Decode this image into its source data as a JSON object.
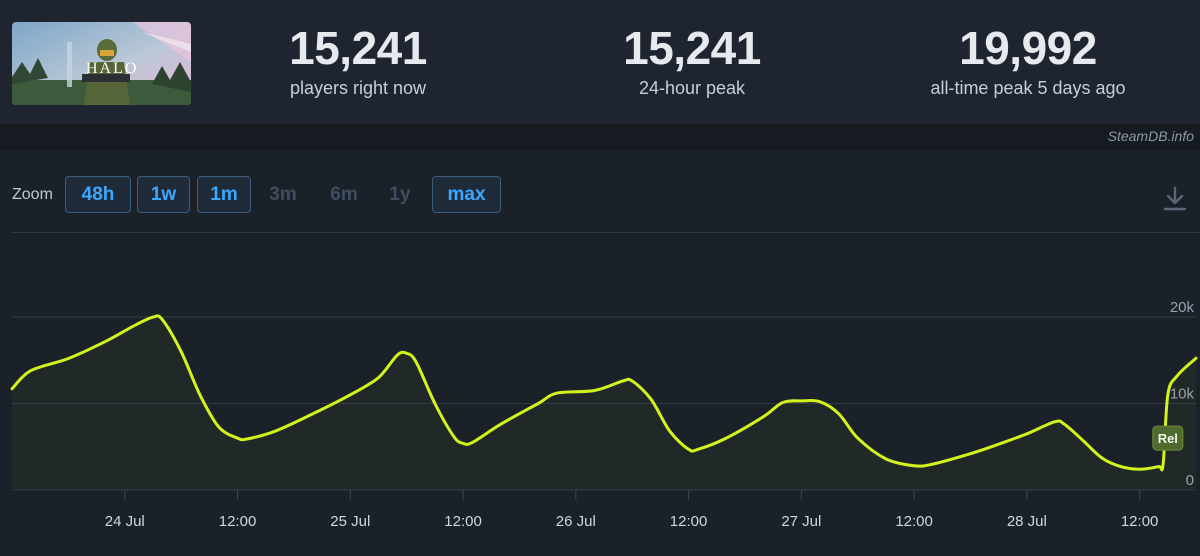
{
  "header": {
    "game_art_icon": "halo-game-capsule",
    "stats": [
      {
        "value": "15,241",
        "label": "players right now"
      },
      {
        "value": "15,241",
        "label": "24-hour peak"
      },
      {
        "value": "19,992",
        "label": "all-time peak 5 days ago"
      }
    ]
  },
  "credit": "SteamDB.info",
  "toolbar": {
    "zoom_label": "Zoom",
    "zoom_options": [
      {
        "label": "48h",
        "enabled": true
      },
      {
        "label": "1w",
        "enabled": true
      },
      {
        "label": "1m",
        "enabled": true
      },
      {
        "label": "3m",
        "enabled": false
      },
      {
        "label": "6m",
        "enabled": false
      },
      {
        "label": "1y",
        "enabled": false
      },
      {
        "label": "max",
        "enabled": true
      }
    ],
    "download_icon": "download-icon"
  },
  "colors": {
    "line": "#d4f21c",
    "accent": "#3ba7ff",
    "background": "#1b2129"
  },
  "chart_data": {
    "type": "line",
    "title": "",
    "xlabel": "",
    "ylabel": "",
    "x_range": [
      "2021-07-23T12:00",
      "2021-07-28T18:00"
    ],
    "ylim": [
      0,
      20000
    ],
    "y_ticks": [
      0,
      10000,
      20000
    ],
    "y_tick_labels": [
      "0",
      "10k",
      "20k"
    ],
    "x_ticks": [
      {
        "at": "2021-07-24T00:00",
        "label": "24 Jul"
      },
      {
        "at": "2021-07-24T12:00",
        "label": "12:00"
      },
      {
        "at": "2021-07-25T00:00",
        "label": "25 Jul"
      },
      {
        "at": "2021-07-25T12:00",
        "label": "12:00"
      },
      {
        "at": "2021-07-26T00:00",
        "label": "26 Jul"
      },
      {
        "at": "2021-07-26T12:00",
        "label": "12:00"
      },
      {
        "at": "2021-07-27T00:00",
        "label": "27 Jul"
      },
      {
        "at": "2021-07-27T12:00",
        "label": "12:00"
      },
      {
        "at": "2021-07-28T00:00",
        "label": "28 Jul"
      },
      {
        "at": "2021-07-28T12:00",
        "label": "12:00"
      }
    ],
    "grid": true,
    "series": [
      {
        "points": [
          [
            "2021-07-23T12:00",
            11700
          ],
          [
            "2021-07-23T14:00",
            13800
          ],
          [
            "2021-07-23T18:00",
            15200
          ],
          [
            "2021-07-23T22:00",
            17200
          ],
          [
            "2021-07-24T01:00",
            19000
          ],
          [
            "2021-07-24T03:00",
            19992
          ],
          [
            "2021-07-24T04:00",
            19700
          ],
          [
            "2021-07-24T06:00",
            16000
          ],
          [
            "2021-07-24T08:00",
            11000
          ],
          [
            "2021-07-24T10:00",
            7300
          ],
          [
            "2021-07-24T12:00",
            6000
          ],
          [
            "2021-07-24T13:00",
            5900
          ],
          [
            "2021-07-24T16:00",
            6800
          ],
          [
            "2021-07-24T20:00",
            8800
          ],
          [
            "2021-07-25T00:00",
            11000
          ],
          [
            "2021-07-25T03:00",
            13000
          ],
          [
            "2021-07-25T05:00",
            15600
          ],
          [
            "2021-07-25T06:00",
            15800
          ],
          [
            "2021-07-25T07:00",
            14800
          ],
          [
            "2021-07-25T09:00",
            10000
          ],
          [
            "2021-07-25T11:00",
            6200
          ],
          [
            "2021-07-25T12:00",
            5400
          ],
          [
            "2021-07-25T13:00",
            5500
          ],
          [
            "2021-07-25T16:00",
            7600
          ],
          [
            "2021-07-25T20:00",
            10000
          ],
          [
            "2021-07-25T22:00",
            11200
          ],
          [
            "2021-07-26T02:00",
            11500
          ],
          [
            "2021-07-26T05:00",
            12600
          ],
          [
            "2021-07-26T06:00",
            12600
          ],
          [
            "2021-07-26T08:00",
            10500
          ],
          [
            "2021-07-26T10:00",
            6800
          ],
          [
            "2021-07-26T12:00",
            4700
          ],
          [
            "2021-07-26T13:00",
            4700
          ],
          [
            "2021-07-26T16:00",
            6000
          ],
          [
            "2021-07-26T20:00",
            8500
          ],
          [
            "2021-07-26T22:00",
            10100
          ],
          [
            "2021-07-27T00:00",
            10300
          ],
          [
            "2021-07-27T02:00",
            10200
          ],
          [
            "2021-07-27T04:00",
            8800
          ],
          [
            "2021-07-27T06:00",
            6000
          ],
          [
            "2021-07-27T09:00",
            3600
          ],
          [
            "2021-07-27T12:00",
            2800
          ],
          [
            "2021-07-27T14:00",
            3000
          ],
          [
            "2021-07-27T18:00",
            4200
          ],
          [
            "2021-07-27T21:00",
            5300
          ],
          [
            "2021-07-28T00:00",
            6500
          ],
          [
            "2021-07-28T03:00",
            7900
          ],
          [
            "2021-07-28T04:00",
            7600
          ],
          [
            "2021-07-28T06:00",
            5700
          ],
          [
            "2021-07-28T08:00",
            3700
          ],
          [
            "2021-07-28T10:00",
            2700
          ],
          [
            "2021-07-28T12:00",
            2400
          ],
          [
            "2021-07-28T14:00",
            2700
          ],
          [
            "2021-07-28T14:30",
            3000
          ],
          [
            "2021-07-28T15:00",
            11000
          ],
          [
            "2021-07-28T16:00",
            13200
          ],
          [
            "2021-07-28T18:00",
            15241
          ]
        ]
      }
    ],
    "annotations": [
      {
        "at": "2021-07-28T15:00",
        "y": 6000,
        "label": "Rel"
      }
    ]
  }
}
